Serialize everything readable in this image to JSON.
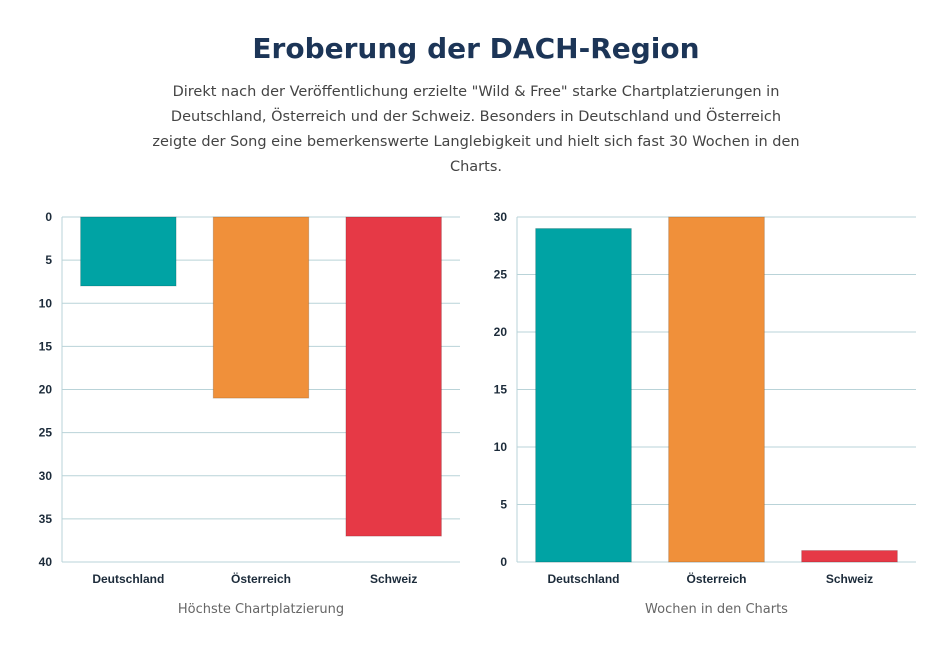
{
  "header": {
    "title": "Eroberung der DACH-Region",
    "description": "Direkt nach der Veröffentlichung erzielte \"Wild & Free\" starke Chartplatzierungen in Deutschland, Österreich und der Schweiz. Besonders in Deutschland und Österreich zeigte der Song eine bemerkenswerte Langlebigkeit und hielt sich fast 30 Wochen in den Charts."
  },
  "colors": {
    "deutschland": "#00a3a4",
    "oesterreich": "#f0903a",
    "schweiz": "#e63946",
    "grid": "#b9d3d8"
  },
  "chart_data": [
    {
      "type": "bar",
      "categories": [
        "Deutschland",
        "Österreich",
        "Schweiz"
      ],
      "values": [
        8,
        21,
        37
      ],
      "xlabel": "Höchste Chartplatzierung",
      "ylabel": "",
      "ylim": [
        0,
        40
      ],
      "y_inverted": true,
      "yticks": [
        0,
        5,
        10,
        15,
        20,
        25,
        30,
        35,
        40
      ],
      "grid": true,
      "legend": "none"
    },
    {
      "type": "bar",
      "categories": [
        "Deutschland",
        "Österreich",
        "Schweiz"
      ],
      "values": [
        29,
        30,
        1
      ],
      "xlabel": "Wochen in den Charts",
      "ylabel": "",
      "ylim": [
        0,
        30
      ],
      "y_inverted": false,
      "yticks": [
        0,
        5,
        10,
        15,
        20,
        25,
        30
      ],
      "grid": true,
      "legend": "none"
    }
  ]
}
